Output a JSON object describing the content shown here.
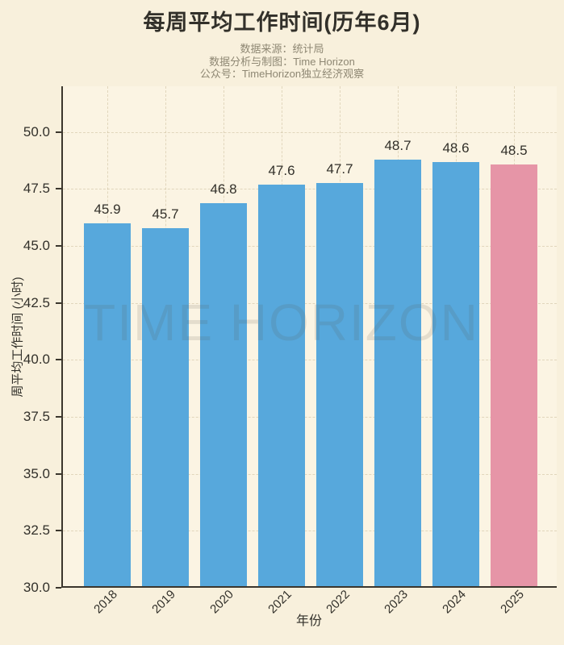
{
  "header": {
    "title": "每周平均工作时间(历年6月)",
    "subtitle_lines": [
      "数据来源：统计局",
      "数据分析与制图：Time Horizon",
      "公众号：TimeHorizon独立经济观察"
    ]
  },
  "watermark_text": "TIME HORIZON",
  "chart_data": {
    "type": "bar",
    "title": "每周平均工作时间(历年6月)",
    "xlabel": "年份",
    "ylabel": "周平均工作时间 (小时)",
    "categories": [
      "2018",
      "2019",
      "2020",
      "2021",
      "2022",
      "2023",
      "2024",
      "2025"
    ],
    "values": [
      45.9,
      45.7,
      46.8,
      47.6,
      47.7,
      48.7,
      48.6,
      48.5
    ],
    "bar_labels": [
      "45.9",
      "45.7",
      "46.8",
      "47.6",
      "47.7",
      "48.7",
      "48.6",
      "48.5"
    ],
    "ylim": [
      30,
      52
    ],
    "yticks": [
      30.0,
      32.5,
      35.0,
      37.5,
      40.0,
      42.5,
      45.0,
      47.5,
      50.0
    ],
    "ytick_labels": [
      "30.0",
      "32.5",
      "35.0",
      "37.5",
      "40.0",
      "42.5",
      "45.0",
      "47.5",
      "50.0"
    ],
    "grid": true,
    "legend": null,
    "highlight_index": 7,
    "bar_color": "#57a8dc",
    "highlight_color": "#e695a7"
  },
  "colors": {
    "figure_bg": "#f8f0dc",
    "plot_bg": "#fbf4e3",
    "spine": "#3b362d",
    "title_text": "#32302a",
    "subtitle_text": "#8e8773",
    "tick_text": "#32302a",
    "grid_line": "#d9cba6",
    "bar_default": "#57a8dc",
    "bar_highlight": "#e695a7",
    "watermark_text": "rgba(95,87,70,0.14)"
  }
}
